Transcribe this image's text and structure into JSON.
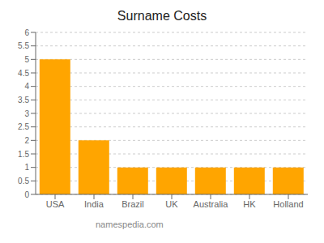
{
  "chart_data": {
    "type": "bar",
    "title": "Surname Costs",
    "categories": [
      "USA",
      "India",
      "Brazil",
      "UK",
      "Australia",
      "HK",
      "Holland"
    ],
    "values": [
      5,
      2,
      1,
      1,
      1,
      1,
      1
    ],
    "color": "#FFA500",
    "ylim": [
      0,
      6
    ],
    "yticks": [
      0,
      0.5,
      1,
      1.5,
      2,
      2.5,
      3,
      3.5,
      4,
      4.5,
      5,
      5.5,
      6
    ],
    "grid": true,
    "annotation": "namespedia.com"
  }
}
